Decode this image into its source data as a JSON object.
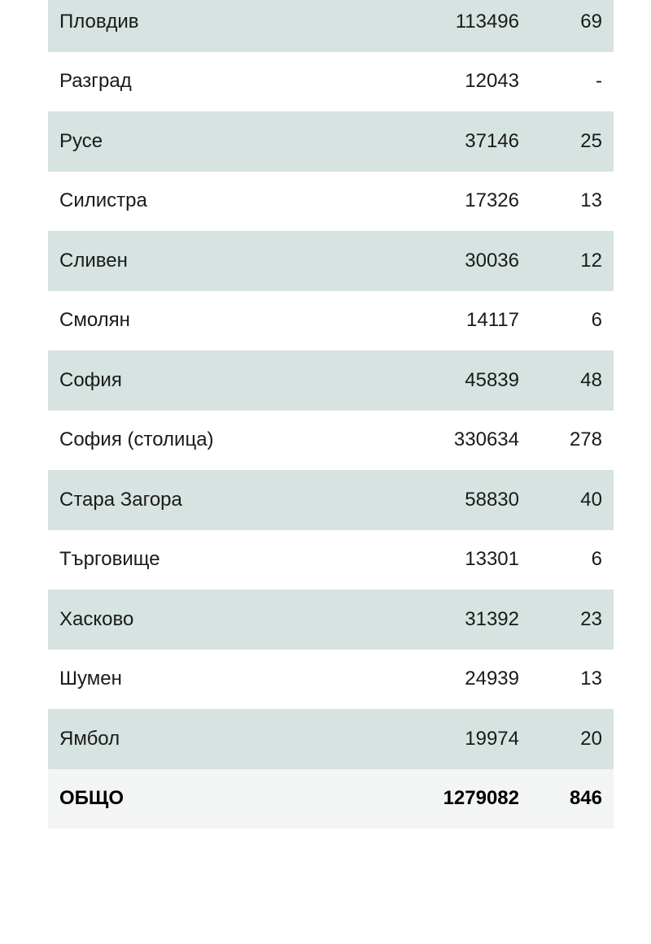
{
  "table": {
    "rows": [
      {
        "region": "Пловдив",
        "value1": "113496",
        "value2": "69"
      },
      {
        "region": "Разград",
        "value1": "12043",
        "value2": "-"
      },
      {
        "region": "Русе",
        "value1": "37146",
        "value2": "25"
      },
      {
        "region": "Силистра",
        "value1": "17326",
        "value2": "13"
      },
      {
        "region": "Сливен",
        "value1": "30036",
        "value2": "12"
      },
      {
        "region": "Смолян",
        "value1": "14117",
        "value2": "6"
      },
      {
        "region": "София",
        "value1": "45839",
        "value2": "48"
      },
      {
        "region": "София (столица)",
        "value1": "330634",
        "value2": "278"
      },
      {
        "region": "Стара Загора",
        "value1": "58830",
        "value2": "40"
      },
      {
        "region": "Търговище",
        "value1": "13301",
        "value2": "6"
      },
      {
        "region": "Хасково",
        "value1": "31392",
        "value2": "23"
      },
      {
        "region": "Шумен",
        "value1": "24939",
        "value2": "13"
      },
      {
        "region": "Ямбол",
        "value1": "19974",
        "value2": "20"
      }
    ],
    "total": {
      "label": "ОБЩО",
      "value1": "1279082",
      "value2": "846"
    }
  },
  "colors": {
    "stripe": "#d6e3e1",
    "total_bg": "#f2f5f4"
  }
}
